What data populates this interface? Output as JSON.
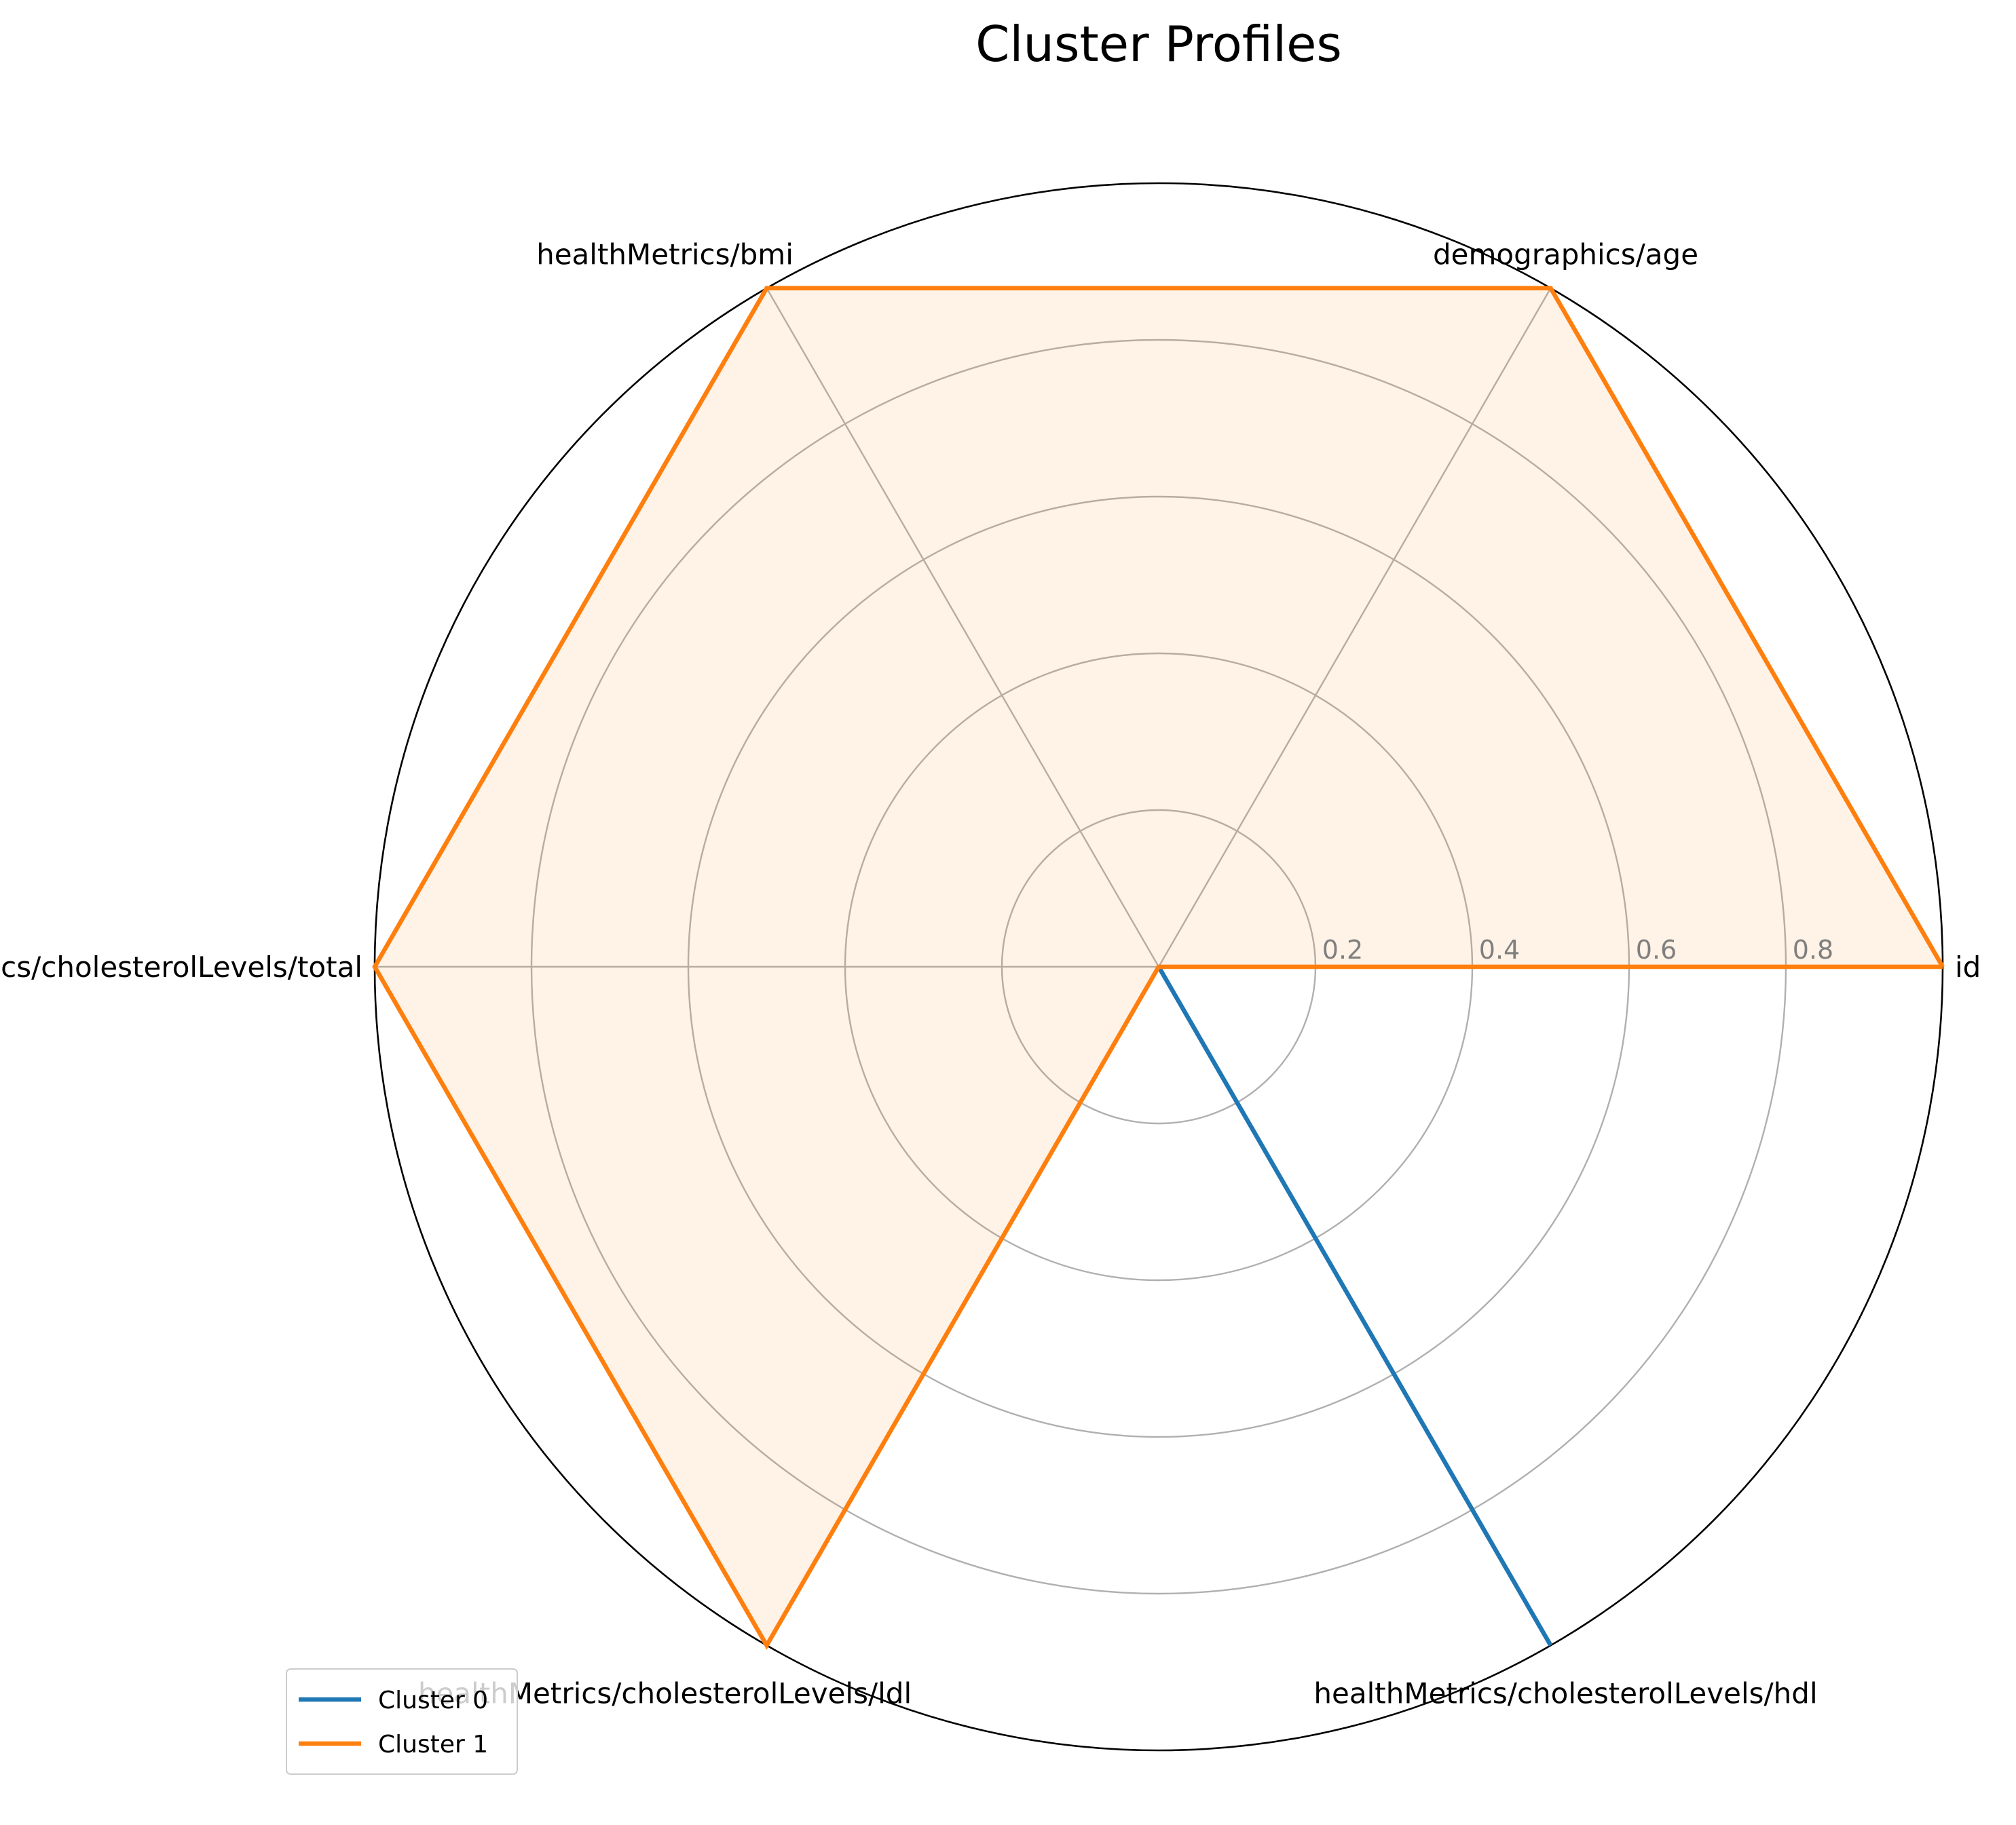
{
  "chart_data": {
    "type": "radar",
    "title": "Cluster Profiles",
    "axes": [
      "id",
      "demographics/age",
      "healthMetrics/bmi",
      "healthMetrics/cholesterolLevels/total",
      "healthMetrics/cholesterolLevels/ldl",
      "healthMetrics/cholesterolLevels/hdl"
    ],
    "rlim": [
      0,
      1
    ],
    "r_ticks": [
      0.2,
      0.4,
      0.6,
      0.8
    ],
    "r_tick_labels": [
      "0.2",
      "0.4",
      "0.6",
      "0.8"
    ],
    "grid": true,
    "legend_position": "lower-left",
    "series": [
      {
        "name": "Cluster 0",
        "color": "#1f77b4",
        "filled": false,
        "values": [
          0,
          0,
          0,
          0,
          0,
          1
        ]
      },
      {
        "name": "Cluster 1",
        "color": "#ff7f0e",
        "filled": true,
        "values": [
          1,
          1,
          1,
          1,
          1,
          0
        ]
      }
    ]
  }
}
